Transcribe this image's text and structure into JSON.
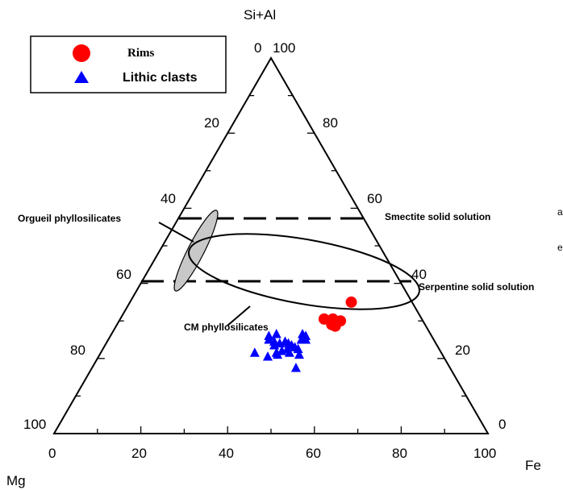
{
  "chart_data": {
    "type": "ternary-scatter",
    "vertices": {
      "top": "Si+Al",
      "left": "Mg",
      "right": "Fe"
    },
    "ticks": {
      "bottom": [
        "0",
        "20",
        "40",
        "60",
        "80",
        "100"
      ],
      "left": [
        "100",
        "80",
        "60",
        "40",
        "20",
        "0"
      ],
      "right": [
        "0",
        "20",
        "40",
        "60",
        "80",
        "100"
      ]
    },
    "legend": {
      "position": "top-left",
      "entries": [
        {
          "label": "Rims",
          "marker": "circle",
          "color": "#ff0000"
        },
        {
          "label": "Lithic clasts",
          "marker": "triangle",
          "color": "#0000ff"
        }
      ]
    },
    "series": [
      {
        "name": "Rims",
        "points": [
          {
            "fe": 51,
            "si": 35
          },
          {
            "fe": 47,
            "si": 30.5
          },
          {
            "fe": 49,
            "si": 30.5
          },
          {
            "fe": 51,
            "si": 30
          },
          {
            "fe": 49.5,
            "si": 29
          },
          {
            "fe": 50.5,
            "si": 28.6
          }
        ]
      },
      {
        "name": "Lithic clasts",
        "points": [
          {
            "fe": 36.5,
            "si": 26
          },
          {
            "fe": 38,
            "si": 26.5
          },
          {
            "fe": 37,
            "si": 25
          },
          {
            "fe": 38.5,
            "si": 24.5
          },
          {
            "fe": 39,
            "si": 23.5
          },
          {
            "fe": 40,
            "si": 24
          },
          {
            "fe": 41,
            "si": 24.5
          },
          {
            "fe": 42,
            "si": 24
          },
          {
            "fe": 43,
            "si": 23.5
          },
          {
            "fe": 44,
            "si": 26.5
          },
          {
            "fe": 45,
            "si": 26
          },
          {
            "fe": 44.5,
            "si": 25
          },
          {
            "fe": 45.5,
            "si": 25
          },
          {
            "fe": 44,
            "si": 23
          },
          {
            "fe": 45,
            "si": 22.5
          },
          {
            "fe": 43.5,
            "si": 21.5
          },
          {
            "fe": 46,
            "si": 21
          },
          {
            "fe": 40.5,
            "si": 21.5
          },
          {
            "fe": 41.5,
            "si": 22
          },
          {
            "fe": 39,
            "si": 20.5
          },
          {
            "fe": 42.5,
            "si": 22.5
          },
          {
            "fe": 35.5,
            "si": 21.5
          },
          {
            "fe": 41,
            "si": 21
          },
          {
            "fe": 47,
            "si": 17.5
          }
        ]
      }
    ],
    "regions": [
      {
        "label": "Smectite solid solution",
        "si": 38
      },
      {
        "label": "Serpentine solid solution",
        "si": 27
      },
      {
        "label": "Orgueil phyllosilicates"
      },
      {
        "label": "CM phyllosilicates"
      }
    ]
  },
  "edge_fragments": {
    "upper": "a",
    "lower": "e"
  }
}
